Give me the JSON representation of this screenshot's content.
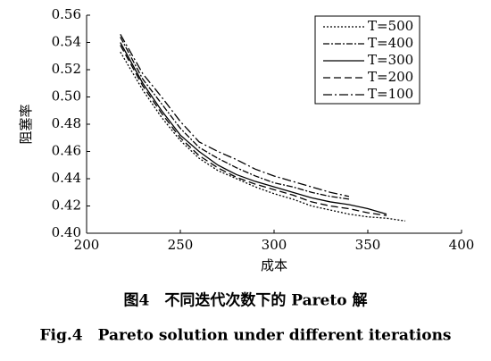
{
  "chart_data": {
    "type": "line",
    "xlabel": "成本",
    "ylabel": "阻塞率",
    "caption_cn": "图4　不同迭代次数下的 Pareto 解",
    "caption_en": "Fig.4　Pareto solution under different iterations",
    "x": [
      218,
      230,
      240,
      250,
      260,
      270,
      280,
      290,
      300,
      310,
      320,
      330,
      340,
      350,
      360,
      370
    ],
    "series": [
      {
        "name": "T=500",
        "color": "#000000",
        "dash": "2,2",
        "values": [
          0.533,
          0.505,
          0.485,
          0.468,
          0.455,
          0.446,
          0.44,
          0.434,
          0.429,
          0.425,
          0.42,
          0.417,
          0.414,
          0.412,
          0.411,
          0.409
        ]
      },
      {
        "name": "T=400",
        "color": "#000000",
        "dash": "7,2,2,2",
        "values": [
          0.544,
          0.513,
          0.495,
          0.477,
          0.463,
          0.455,
          0.448,
          0.442,
          0.437,
          0.434,
          0.43,
          0.427,
          0.425,
          null,
          null,
          null
        ]
      },
      {
        "name": "T=300",
        "color": "#000000",
        "dash": "none",
        "values": [
          0.54,
          0.51,
          0.49,
          0.472,
          0.46,
          0.45,
          0.443,
          0.438,
          0.434,
          0.43,
          0.426,
          0.423,
          0.421,
          0.418,
          0.414,
          null
        ]
      },
      {
        "name": "T=200",
        "color": "#000000",
        "dash": "8,4",
        "values": [
          0.538,
          0.508,
          0.488,
          0.47,
          0.457,
          0.448,
          0.441,
          0.436,
          0.432,
          0.428,
          0.423,
          0.42,
          0.418,
          0.415,
          0.413,
          null
        ]
      },
      {
        "name": "T=100",
        "color": "#000000",
        "dash": "10,3,2,3",
        "values": [
          0.546,
          0.517,
          0.5,
          0.482,
          0.467,
          0.46,
          0.454,
          0.447,
          0.442,
          0.438,
          0.434,
          0.43,
          0.427,
          null,
          null,
          null
        ]
      }
    ],
    "xlim": [
      200,
      400
    ],
    "xticks": [
      200,
      250,
      300,
      350,
      400
    ],
    "ylim": [
      0.4,
      0.56
    ],
    "yticks": [
      {
        "value": 0.4,
        "label": "0.40"
      },
      0.42,
      0.44,
      0.46,
      0.48,
      {
        "value": 0.5,
        "label": "0.50"
      },
      0.52,
      0.54,
      0.56
    ],
    "legend": "upper right",
    "grid": false
  }
}
